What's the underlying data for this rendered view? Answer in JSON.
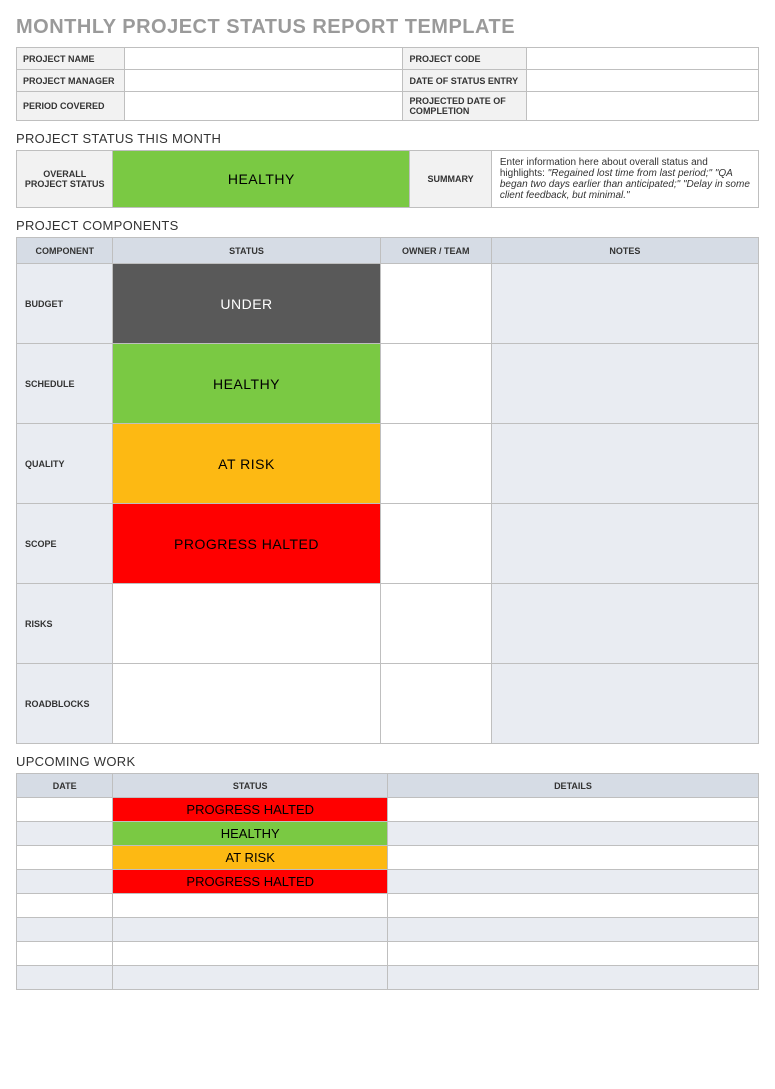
{
  "colors": {
    "title_gray": "#9a9a9a",
    "border": "#bfbfbf",
    "label_bg": "#f2f2f2",
    "header_bg": "#d6dce5",
    "row_alt_bg": "#e9ecf2",
    "white": "#ffffff",
    "status": {
      "HEALTHY": {
        "bg": "#7ac943",
        "fg": "#000000"
      },
      "UNDER": {
        "bg": "#595959",
        "fg": "#ffffff"
      },
      "AT RISK": {
        "bg": "#fdb913",
        "fg": "#000000"
      },
      "PROGRESS HALTED": {
        "bg": "#ff0000",
        "fg": "#000000"
      },
      "": {
        "bg": "#ffffff",
        "fg": "#000000"
      }
    }
  },
  "page": {
    "title": "MONTHLY PROJECT STATUS REPORT TEMPLATE"
  },
  "info": {
    "rows": [
      {
        "l1": "PROJECT NAME",
        "v1": "",
        "l2": "PROJECT CODE",
        "v2": ""
      },
      {
        "l1": "PROJECT MANAGER",
        "v1": "",
        "l2": "DATE OF STATUS ENTRY",
        "v2": ""
      },
      {
        "l1": "PERIOD COVERED",
        "v1": "",
        "l2": "PROJECTED DATE OF COMPLETION",
        "v2": ""
      }
    ]
  },
  "status_month": {
    "section_title": "PROJECT STATUS THIS MONTH",
    "overall_label": "OVERALL PROJECT STATUS",
    "overall_status": "HEALTHY",
    "summary_label": "SUMMARY",
    "summary_lead": "Enter information here about overall status and highlights: ",
    "summary_italic": "\"Regained lost time from last period;\" \"QA began two days earlier than anticipated;\" \"Delay in some client feedback, but minimal.\""
  },
  "components": {
    "section_title": "PROJECT COMPONENTS",
    "headers": [
      "COMPONENT",
      "STATUS",
      "OWNER / TEAM",
      "NOTES"
    ],
    "rows": [
      {
        "label": "BUDGET",
        "status": "UNDER",
        "owner": "",
        "notes": ""
      },
      {
        "label": "SCHEDULE",
        "status": "HEALTHY",
        "owner": "",
        "notes": ""
      },
      {
        "label": "QUALITY",
        "status": "AT RISK",
        "owner": "",
        "notes": ""
      },
      {
        "label": "SCOPE",
        "status": "PROGRESS HALTED",
        "owner": "",
        "notes": ""
      },
      {
        "label": "RISKS",
        "status": "",
        "owner": "",
        "notes": ""
      },
      {
        "label": "ROADBLOCKS",
        "status": "",
        "owner": "",
        "notes": ""
      }
    ]
  },
  "upcoming": {
    "section_title": "UPCOMING WORK",
    "headers": [
      "DATE",
      "STATUS",
      "DETAILS"
    ],
    "rows": [
      {
        "date": "",
        "status": "PROGRESS HALTED",
        "details": ""
      },
      {
        "date": "",
        "status": "HEALTHY",
        "details": ""
      },
      {
        "date": "",
        "status": "AT RISK",
        "details": ""
      },
      {
        "date": "",
        "status": "PROGRESS HALTED",
        "details": ""
      },
      {
        "date": "",
        "status": "",
        "details": ""
      },
      {
        "date": "",
        "status": "",
        "details": ""
      },
      {
        "date": "",
        "status": "",
        "details": ""
      },
      {
        "date": "",
        "status": "",
        "details": ""
      }
    ]
  }
}
